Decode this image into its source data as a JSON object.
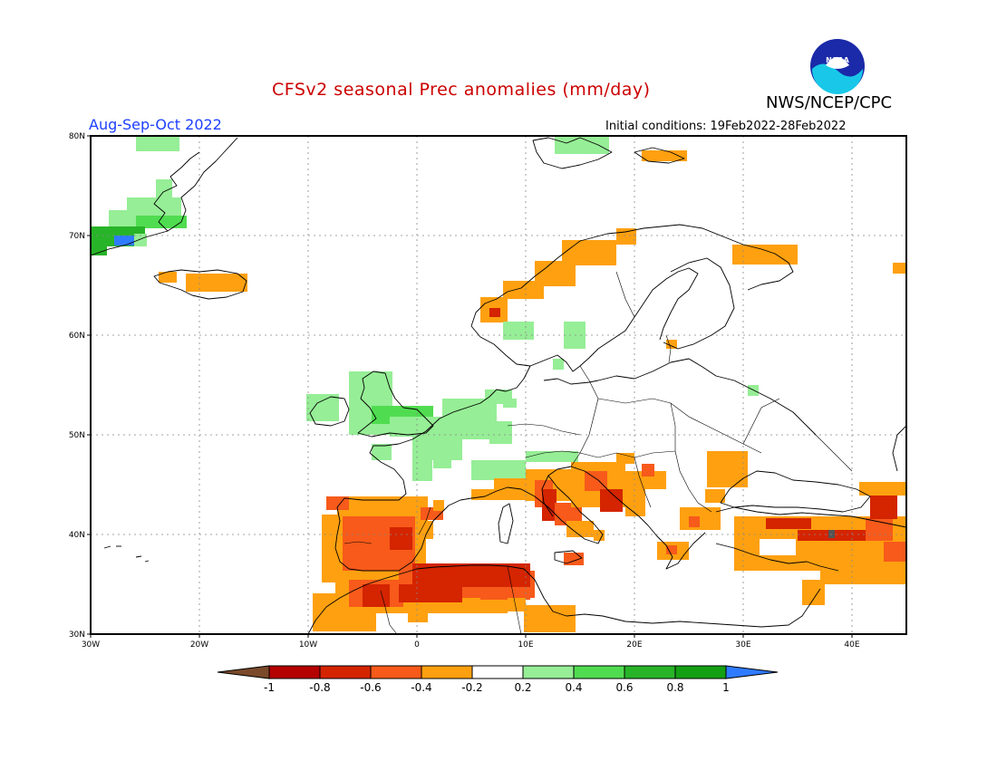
{
  "header": {
    "title": "CFSv2 seasonal Prec anomalies (mm/day)",
    "agency": "NWS/NCEP/CPC",
    "logo_text": "NOAA",
    "period": "Aug-Sep-Oct 2022",
    "initial_conditions": "Initial conditions: 19Feb2022-28Feb2022"
  },
  "axes": {
    "lat_labels": [
      "80N",
      "70N",
      "60N",
      "50N",
      "40N",
      "30N"
    ],
    "lon_labels": [
      "30W",
      "20W",
      "10W",
      "0",
      "10E",
      "20E",
      "30E",
      "40E"
    ]
  },
  "colorbar": {
    "labels": [
      "-1",
      "-0.8",
      "-0.6",
      "-0.4",
      "-0.2",
      "0.2",
      "0.4",
      "0.6",
      "0.8",
      "1"
    ],
    "colors": [
      "#7a4a2a",
      "#b40000",
      "#d42400",
      "#f75a1a",
      "#ffa010",
      "#ffffff",
      "#96ee96",
      "#50dc50",
      "#28b428",
      "#14a014",
      "#2f7bff"
    ]
  },
  "palette": {
    "land_outline": "#000000",
    "grid": "#888888",
    "title": "#cc0000",
    "period": "#1e40ff"
  }
}
